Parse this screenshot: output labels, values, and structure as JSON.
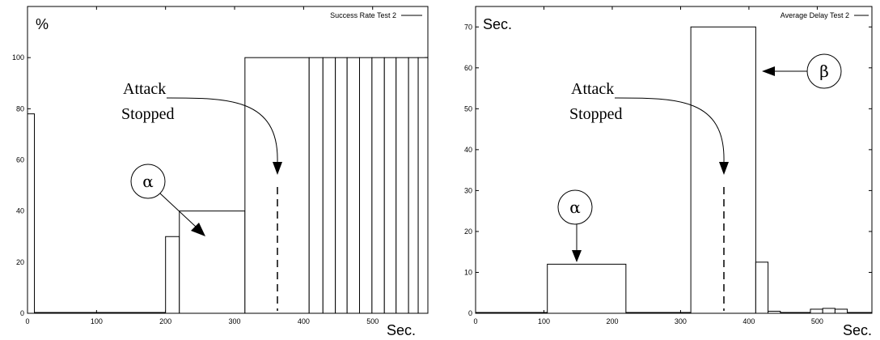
{
  "chart_data": [
    {
      "type": "bar",
      "y_unit": "%",
      "x_unit": "Sec.",
      "legend": "Success Rate Test 2",
      "legend_position": "top-right",
      "xlim": [
        0,
        580
      ],
      "ylim": [
        0,
        120
      ],
      "x_ticks": [
        0,
        100,
        200,
        300,
        400,
        500
      ],
      "y_ticks": [
        0,
        20,
        40,
        60,
        80,
        100
      ],
      "bars": [
        {
          "x0": 0,
          "x1": 10,
          "value": 78
        },
        {
          "x0": 200,
          "x1": 220,
          "value": 30
        },
        {
          "x0": 220,
          "x1": 315,
          "value": 40
        },
        {
          "x0": 315,
          "x1": 408,
          "value": 100
        },
        {
          "x0": 408,
          "x1": 428,
          "value": 100
        },
        {
          "x0": 428,
          "x1": 446,
          "value": 100
        },
        {
          "x0": 446,
          "x1": 463,
          "value": 100
        },
        {
          "x0": 463,
          "x1": 481,
          "value": 100
        },
        {
          "x0": 481,
          "x1": 499,
          "value": 100
        },
        {
          "x0": 499,
          "x1": 517,
          "value": 100
        },
        {
          "x0": 517,
          "x1": 534,
          "value": 100
        },
        {
          "x0": 534,
          "x1": 552,
          "value": 100
        },
        {
          "x0": 552,
          "x1": 566,
          "value": 100
        },
        {
          "x0": 566,
          "x1": 580,
          "value": 100
        }
      ],
      "annotations": {
        "attack_stopped": {
          "line1": "Attack",
          "line2": "Stopped",
          "x": 362,
          "y": 40
        },
        "alpha": {
          "label": "α",
          "points_to_x": 255,
          "points_to_y": 20
        }
      }
    },
    {
      "type": "bar",
      "y_unit": "Sec.",
      "x_unit": "Sec.",
      "legend": "Average Delay Test 2",
      "legend_position": "top-right",
      "xlim": [
        0,
        580
      ],
      "ylim": [
        0,
        75
      ],
      "x_ticks": [
        0,
        100,
        200,
        300,
        400,
        500
      ],
      "y_ticks": [
        0,
        10,
        20,
        30,
        40,
        50,
        60,
        70
      ],
      "bars": [
        {
          "x0": 105,
          "x1": 220,
          "value": 12
        },
        {
          "x0": 315,
          "x1": 410,
          "value": 70
        },
        {
          "x0": 410,
          "x1": 428,
          "value": 12.5
        },
        {
          "x0": 428,
          "x1": 446,
          "value": 0.5
        },
        {
          "x0": 490,
          "x1": 508,
          "value": 1
        },
        {
          "x0": 508,
          "x1": 526,
          "value": 1.2
        },
        {
          "x0": 526,
          "x1": 544,
          "value": 1
        }
      ],
      "annotations": {
        "attack_stopped": {
          "line1": "Attack",
          "line2": "Stopped",
          "x": 362,
          "y": 33
        },
        "alpha": {
          "label": "α",
          "points_to_x": 150,
          "points_to_y": 12
        },
        "beta": {
          "label": "β",
          "points_to_x": 410,
          "points_to_y": 63
        }
      }
    }
  ]
}
